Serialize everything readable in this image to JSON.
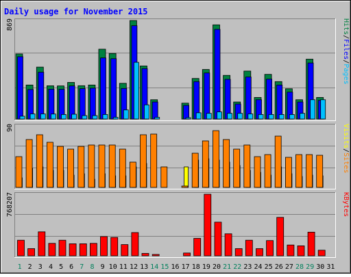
{
  "title": "Daily usage for November 2015",
  "colors": {
    "background": "#C0C0C0",
    "title": "#0000FF",
    "border": "#000000",
    "hits": "#008040",
    "files": "#0000FF",
    "pages": "#00C0FF",
    "visits": "#FFFF00",
    "sites": "#FF8000",
    "kbytes": "#FF0000",
    "weekend_label": "#00805C",
    "weekday_label": "#000000"
  },
  "chart_data": [
    {
      "type": "bar",
      "panel": "hits_files_pages",
      "y_max_label": "869",
      "ylim": [
        0,
        869
      ],
      "grid": true,
      "legend": [
        "Pages",
        "Files",
        "Hits"
      ],
      "legend_separator": "/",
      "categories": [
        "1",
        "2",
        "3",
        "4",
        "5",
        "6",
        "7",
        "8",
        "9",
        "10",
        "11",
        "12",
        "13",
        "14",
        "15",
        "16",
        "17",
        "18",
        "19",
        "20",
        "21",
        "22",
        "23",
        "24",
        "25",
        "26",
        "27",
        "28",
        "29",
        "30",
        "31"
      ],
      "series": [
        {
          "name": "Hits",
          "values": [
            574,
            300,
            458,
            293,
            292,
            323,
            294,
            300,
            616,
            578,
            315,
            869,
            468,
            170,
            0,
            0,
            140,
            358,
            437,
            831,
            385,
            150,
            423,
            190,
            394,
            330,
            267,
            170,
            528,
            190,
            0
          ]
        },
        {
          "name": "Files",
          "values": [
            550,
            260,
            413,
            263,
            262,
            292,
            268,
            272,
            539,
            532,
            270,
            823,
            445,
            150,
            0,
            0,
            120,
            330,
            406,
            791,
            350,
            132,
            371,
            170,
            352,
            300,
            237,
            150,
            494,
            165,
            0
          ]
        },
        {
          "name": "Pages",
          "values": [
            25,
            45,
            45,
            44,
            40,
            42,
            30,
            30,
            40,
            15,
            80,
            500,
            125,
            15,
            0,
            0,
            5,
            55,
            50,
            63,
            50,
            50,
            45,
            40,
            40,
            40,
            40,
            50,
            170,
            170,
            0
          ]
        }
      ]
    },
    {
      "type": "bar",
      "panel": "visits_sites",
      "y_max_label": "90",
      "ylim": [
        0,
        90
      ],
      "grid": true,
      "legend": [
        "Sites",
        "Visits"
      ],
      "legend_separator": "/",
      "categories": [
        "1",
        "2",
        "3",
        "4",
        "5",
        "6",
        "7",
        "8",
        "9",
        "10",
        "11",
        "12",
        "13",
        "14",
        "15",
        "16",
        "17",
        "18",
        "19",
        "20",
        "21",
        "22",
        "23",
        "24",
        "25",
        "26",
        "27",
        "28",
        "29",
        "30",
        "31"
      ],
      "series": [
        {
          "name": "Visits",
          "values": [
            14,
            28,
            30,
            25,
            25,
            18,
            20,
            12,
            20,
            17,
            17,
            30,
            35,
            0,
            0,
            0,
            30,
            40,
            42,
            40,
            37,
            32,
            25,
            22,
            18,
            30,
            20,
            16,
            18,
            17,
            0
          ]
        },
        {
          "name": "Sites",
          "values": [
            45,
            70,
            77,
            66,
            60,
            56,
            60,
            62,
            62,
            62,
            56,
            37,
            77,
            78,
            30,
            0,
            2,
            50,
            68,
            83,
            70,
            56,
            62,
            45,
            48,
            75,
            44,
            48,
            48,
            47,
            0
          ]
        }
      ]
    },
    {
      "type": "bar",
      "panel": "kbytes",
      "y_max_label": "768207",
      "ylim": [
        0,
        768207
      ],
      "grid": true,
      "legend": [
        "KBytes"
      ],
      "categories": [
        "1",
        "2",
        "3",
        "4",
        "5",
        "6",
        "7",
        "8",
        "9",
        "10",
        "11",
        "12",
        "13",
        "14",
        "15",
        "16",
        "17",
        "18",
        "19",
        "20",
        "21",
        "22",
        "23",
        "24",
        "25",
        "26",
        "27",
        "28",
        "29",
        "30",
        "31"
      ],
      "series": [
        {
          "name": "KBytes",
          "values": [
            195000,
            90000,
            300000,
            155000,
            195000,
            150000,
            150000,
            155000,
            240000,
            230000,
            140000,
            290000,
            30000,
            15000,
            0,
            0,
            35000,
            218000,
            768207,
            420000,
            275000,
            90000,
            195000,
            90000,
            190000,
            480000,
            135000,
            125000,
            295000,
            70000,
            0
          ]
        }
      ]
    }
  ],
  "day_labels": [
    {
      "label": "1",
      "weekend": true
    },
    {
      "label": "2",
      "weekend": false
    },
    {
      "label": "3",
      "weekend": false
    },
    {
      "label": "4",
      "weekend": false
    },
    {
      "label": "5",
      "weekend": false
    },
    {
      "label": "6",
      "weekend": false
    },
    {
      "label": "7",
      "weekend": true
    },
    {
      "label": "8",
      "weekend": true
    },
    {
      "label": "9",
      "weekend": false
    },
    {
      "label": "10",
      "weekend": false
    },
    {
      "label": "11",
      "weekend": false
    },
    {
      "label": "12",
      "weekend": false
    },
    {
      "label": "13",
      "weekend": false
    },
    {
      "label": "14",
      "weekend": true
    },
    {
      "label": "15",
      "weekend": true
    },
    {
      "label": "16",
      "weekend": false
    },
    {
      "label": "17",
      "weekend": false
    },
    {
      "label": "18",
      "weekend": false
    },
    {
      "label": "19",
      "weekend": false
    },
    {
      "label": "20",
      "weekend": false
    },
    {
      "label": "21",
      "weekend": true
    },
    {
      "label": "22",
      "weekend": true
    },
    {
      "label": "23",
      "weekend": false
    },
    {
      "label": "24",
      "weekend": false
    },
    {
      "label": "25",
      "weekend": false
    },
    {
      "label": "26",
      "weekend": false
    },
    {
      "label": "27",
      "weekend": false
    },
    {
      "label": "28",
      "weekend": true
    },
    {
      "label": "29",
      "weekend": true
    },
    {
      "label": "30",
      "weekend": false
    },
    {
      "label": "31",
      "weekend": false
    }
  ]
}
